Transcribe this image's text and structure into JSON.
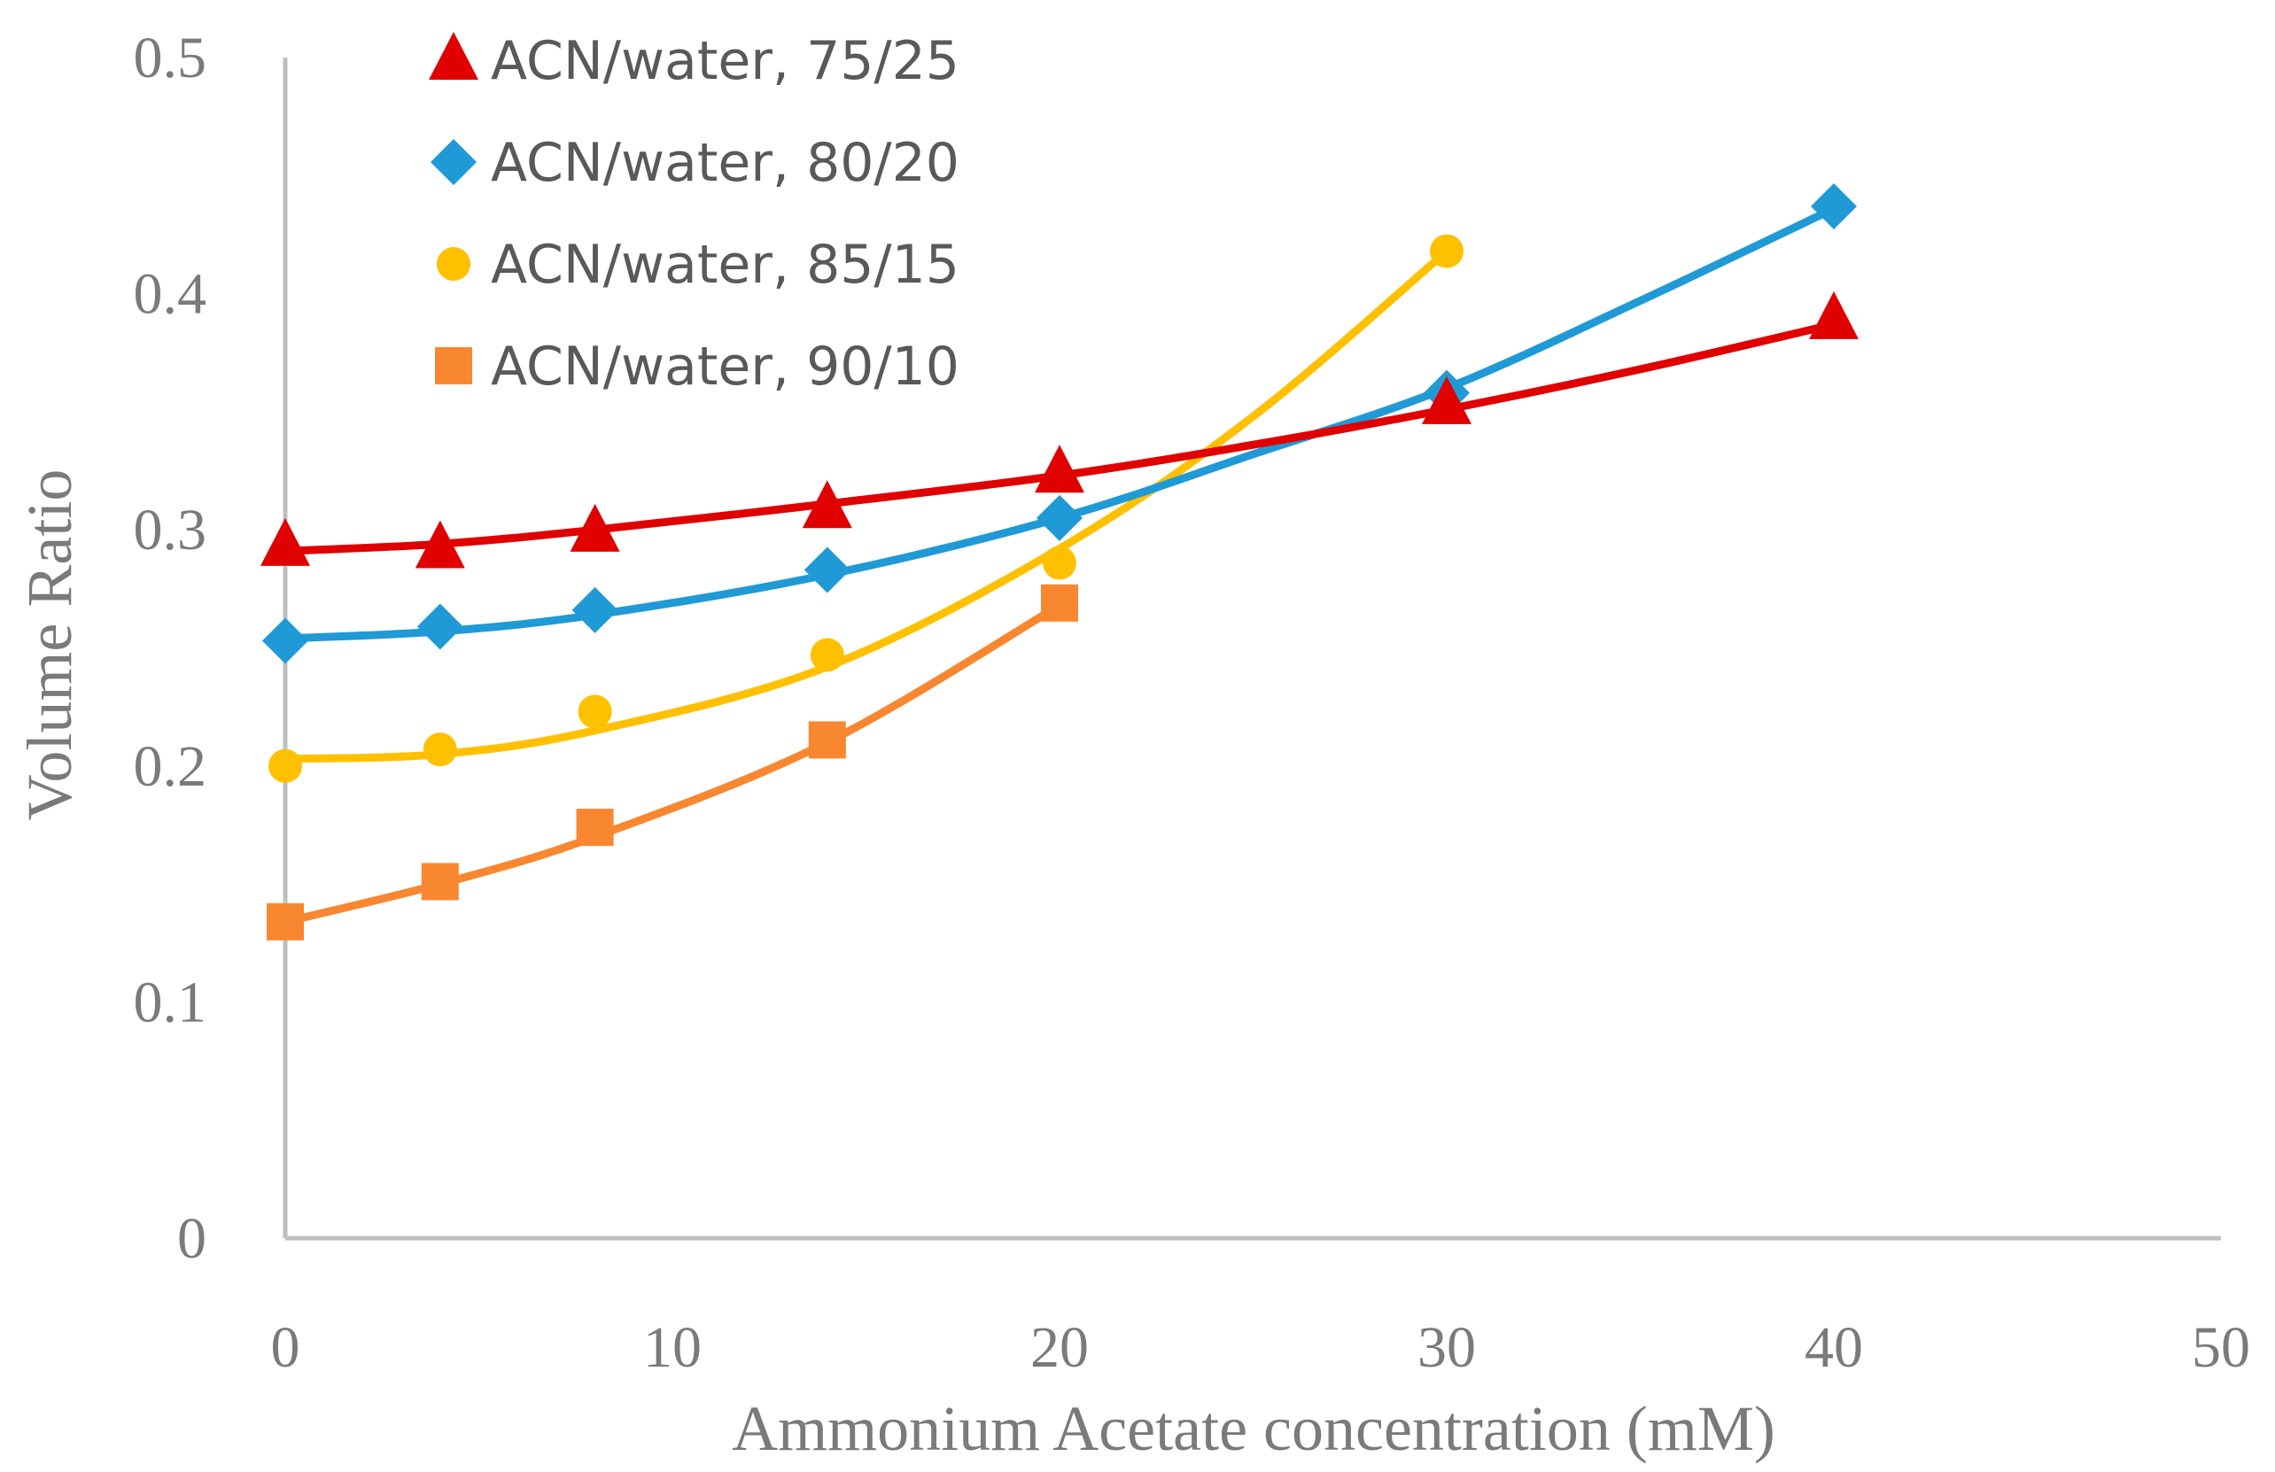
{
  "chart_data": {
    "type": "line",
    "title": "",
    "xlabel": "Ammonium Acetate concentration (mM)",
    "ylabel": "Volume  Ratio",
    "xlim": [
      0,
      50
    ],
    "ylim": [
      0,
      0.5
    ],
    "x_ticks": [
      "0",
      "10",
      "20",
      "30",
      "40",
      "50"
    ],
    "y_ticks": [
      "0",
      "0.1",
      "0.2",
      "0.3",
      "0.4",
      "0.5"
    ],
    "grid": false,
    "legend_position": "top-left",
    "series": [
      {
        "name": "ACN/water, 75/25",
        "color": "#e00000",
        "marker": "triangle",
        "x": [
          0,
          4,
          8,
          14,
          20,
          30,
          40
        ],
        "y": [
          0.293,
          0.292,
          0.299,
          0.309,
          0.324,
          0.353,
          0.389
        ],
        "curve_x": [
          0,
          4,
          8,
          14,
          20,
          25,
          30,
          35,
          40
        ],
        "curve_y": [
          0.291,
          0.294,
          0.3,
          0.311,
          0.323,
          0.336,
          0.351,
          0.368,
          0.387
        ]
      },
      {
        "name": "ACN/water, 80/20",
        "color": "#1f9ad6",
        "marker": "diamond",
        "x": [
          0,
          4,
          8,
          14,
          20,
          30,
          40
        ],
        "y": [
          0.253,
          0.259,
          0.266,
          0.283,
          0.305,
          0.358,
          0.437
        ],
        "curve_x": [
          0,
          4,
          8,
          14,
          20,
          25,
          30,
          35,
          40
        ],
        "curve_y": [
          0.254,
          0.257,
          0.264,
          0.281,
          0.305,
          0.332,
          0.36,
          0.397,
          0.436
        ]
      },
      {
        "name": "ACN/water, 85/15",
        "color": "#ffc000",
        "marker": "circle",
        "x": [
          0,
          4,
          8,
          14,
          20,
          30
        ],
        "y": [
          0.2,
          0.207,
          0.223,
          0.247,
          0.286,
          0.418
        ],
        "curve_x": [
          0,
          4,
          8,
          14,
          20,
          25,
          30
        ],
        "curve_y": [
          0.203,
          0.205,
          0.215,
          0.242,
          0.292,
          0.348,
          0.418
        ]
      },
      {
        "name": "ACN/water, 90/10",
        "color": "#f88730",
        "marker": "square",
        "x": [
          0,
          4,
          8,
          14,
          20
        ],
        "y": [
          0.134,
          0.151,
          0.174,
          0.211,
          0.269
        ],
        "curve_x": [
          0,
          4,
          8,
          14,
          20
        ],
        "curve_y": [
          0.134,
          0.15,
          0.17,
          0.21,
          0.268
        ]
      }
    ]
  }
}
